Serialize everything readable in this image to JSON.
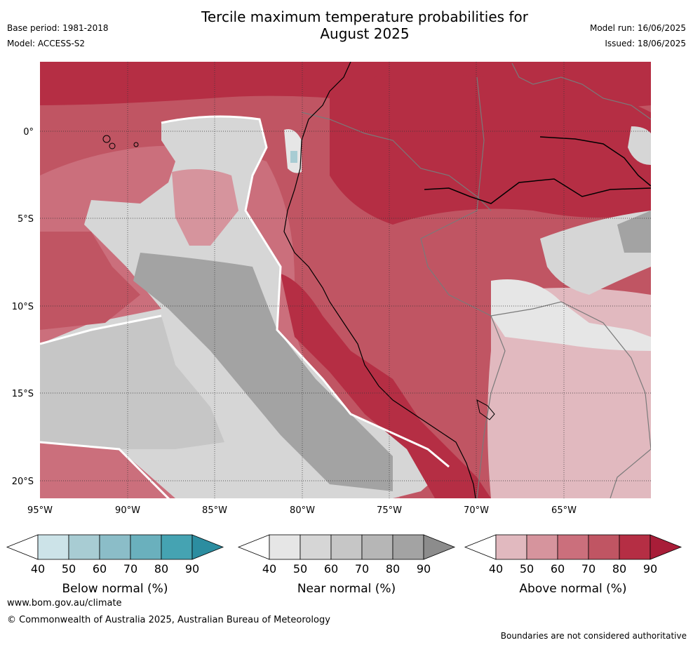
{
  "title_line1": "Tercile maximum temperature probabilities for",
  "title_line2": "August 2025",
  "base_period": "Base period: 1981-2018",
  "model": "Model: ACCESS-S2",
  "model_run": "Model run: 16/06/2025",
  "issued": "Issued: 18/06/2025",
  "axes": {
    "lat_labels": [
      "0°",
      "5°S",
      "10°S",
      "15°S",
      "20°S"
    ],
    "lon_labels": [
      "95°W",
      "90°W",
      "85°W",
      "80°W",
      "75°W",
      "70°W",
      "65°W"
    ]
  },
  "legends": [
    {
      "label": "Below normal (%)",
      "ticks": [
        "40",
        "50",
        "60",
        "70",
        "80",
        "90"
      ],
      "colors": [
        "#ffffff",
        "#cce3e8",
        "#a8ccd3",
        "#8bbdc8",
        "#6ab0bd",
        "#45a3b2",
        "#2c8da0"
      ]
    },
    {
      "label": "Near normal (%)",
      "ticks": [
        "40",
        "50",
        "60",
        "70",
        "80",
        "90"
      ],
      "colors": [
        "#ffffff",
        "#e6e6e6",
        "#d6d6d6",
        "#c6c6c6",
        "#b6b6b6",
        "#a3a3a3",
        "#8c8c8c"
      ]
    },
    {
      "label": "Above normal (%)",
      "ticks": [
        "40",
        "50",
        "60",
        "70",
        "80",
        "90"
      ],
      "colors": [
        "#ffffff",
        "#e1b9bf",
        "#d6949d",
        "#cb6f7c",
        "#c05563",
        "#b52e44",
        "#a81d38"
      ]
    }
  ],
  "footer": {
    "website": "www.bom.gov.au/climate",
    "copyright": "© Commonwealth of Australia 2025, Australian Bureau of Meteorology",
    "disclaimer": "Boundaries are not considered authoritative"
  }
}
